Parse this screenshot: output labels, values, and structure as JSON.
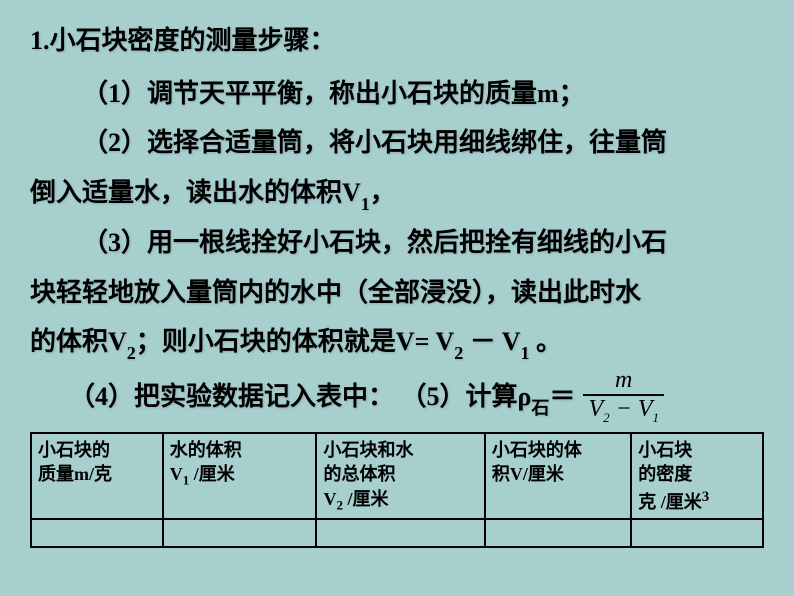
{
  "title": "1.小石块密度的测量步骤：",
  "steps": {
    "s1": "（1）调节天平平衡，称出小石块的质量m；",
    "s2_line1": "（2）选择合适量筒，将小石块用细线绑住，往量筒",
    "s2_line2_pre": "倒入适量水，读出水的体积V",
    "s2_line2_sub": "1",
    "s2_line2_post": "，",
    "s3_line1": "（3）用一根线拴好小石块，然后把拴有细线的小石",
    "s3_line2": "块轻轻地放入量筒内的水中（全部浸没），读出此时水",
    "s3_line3_pre": "的体积V",
    "s3_line3_sub1": "2",
    "s3_line3_mid": "；则小石块的体积就是",
    "s3_line3_formula": "V= V",
    "s3_line3_fsub1": "2",
    "s3_line3_minus": " － V",
    "s3_line3_fsub2": "1",
    "s3_line3_end": " 。",
    "s4_text": "　　（4）把实验数据记入表中： （5）计算ρ",
    "s4_sub": "石",
    "s4_eq": "＝"
  },
  "formula": {
    "numerator": "m",
    "denom_v2": "V",
    "denom_sub2": "2",
    "denom_minus": " − ",
    "denom_v1": "V",
    "denom_sub1": "1"
  },
  "table": {
    "headers": {
      "h1_l1": "小石块的",
      "h1_l2": "质量m/克",
      "h2_l1": "水的体积",
      "h2_l2_pre": "V",
      "h2_l2_sub": "1",
      "h2_l2_post": " /厘米",
      "h3_l1": "小石块和水",
      "h3_l2": "的总体积",
      "h3_l3_pre": "V",
      "h3_l3_sub": "2",
      "h3_l3_post": "   /厘米",
      "h4_l1": "小石块的体",
      "h4_l2": "积V/厘米",
      "h5_l1": "小石块",
      "h5_l2": "的密度",
      "h5_l3_pre": "克 /厘米",
      "h5_l3_sup": "3"
    },
    "col_widths": [
      "18%",
      "21%",
      "23%",
      "20%",
      "18%"
    ]
  },
  "colors": {
    "background": "#a7cfce",
    "text": "#000000",
    "border": "#000000"
  }
}
